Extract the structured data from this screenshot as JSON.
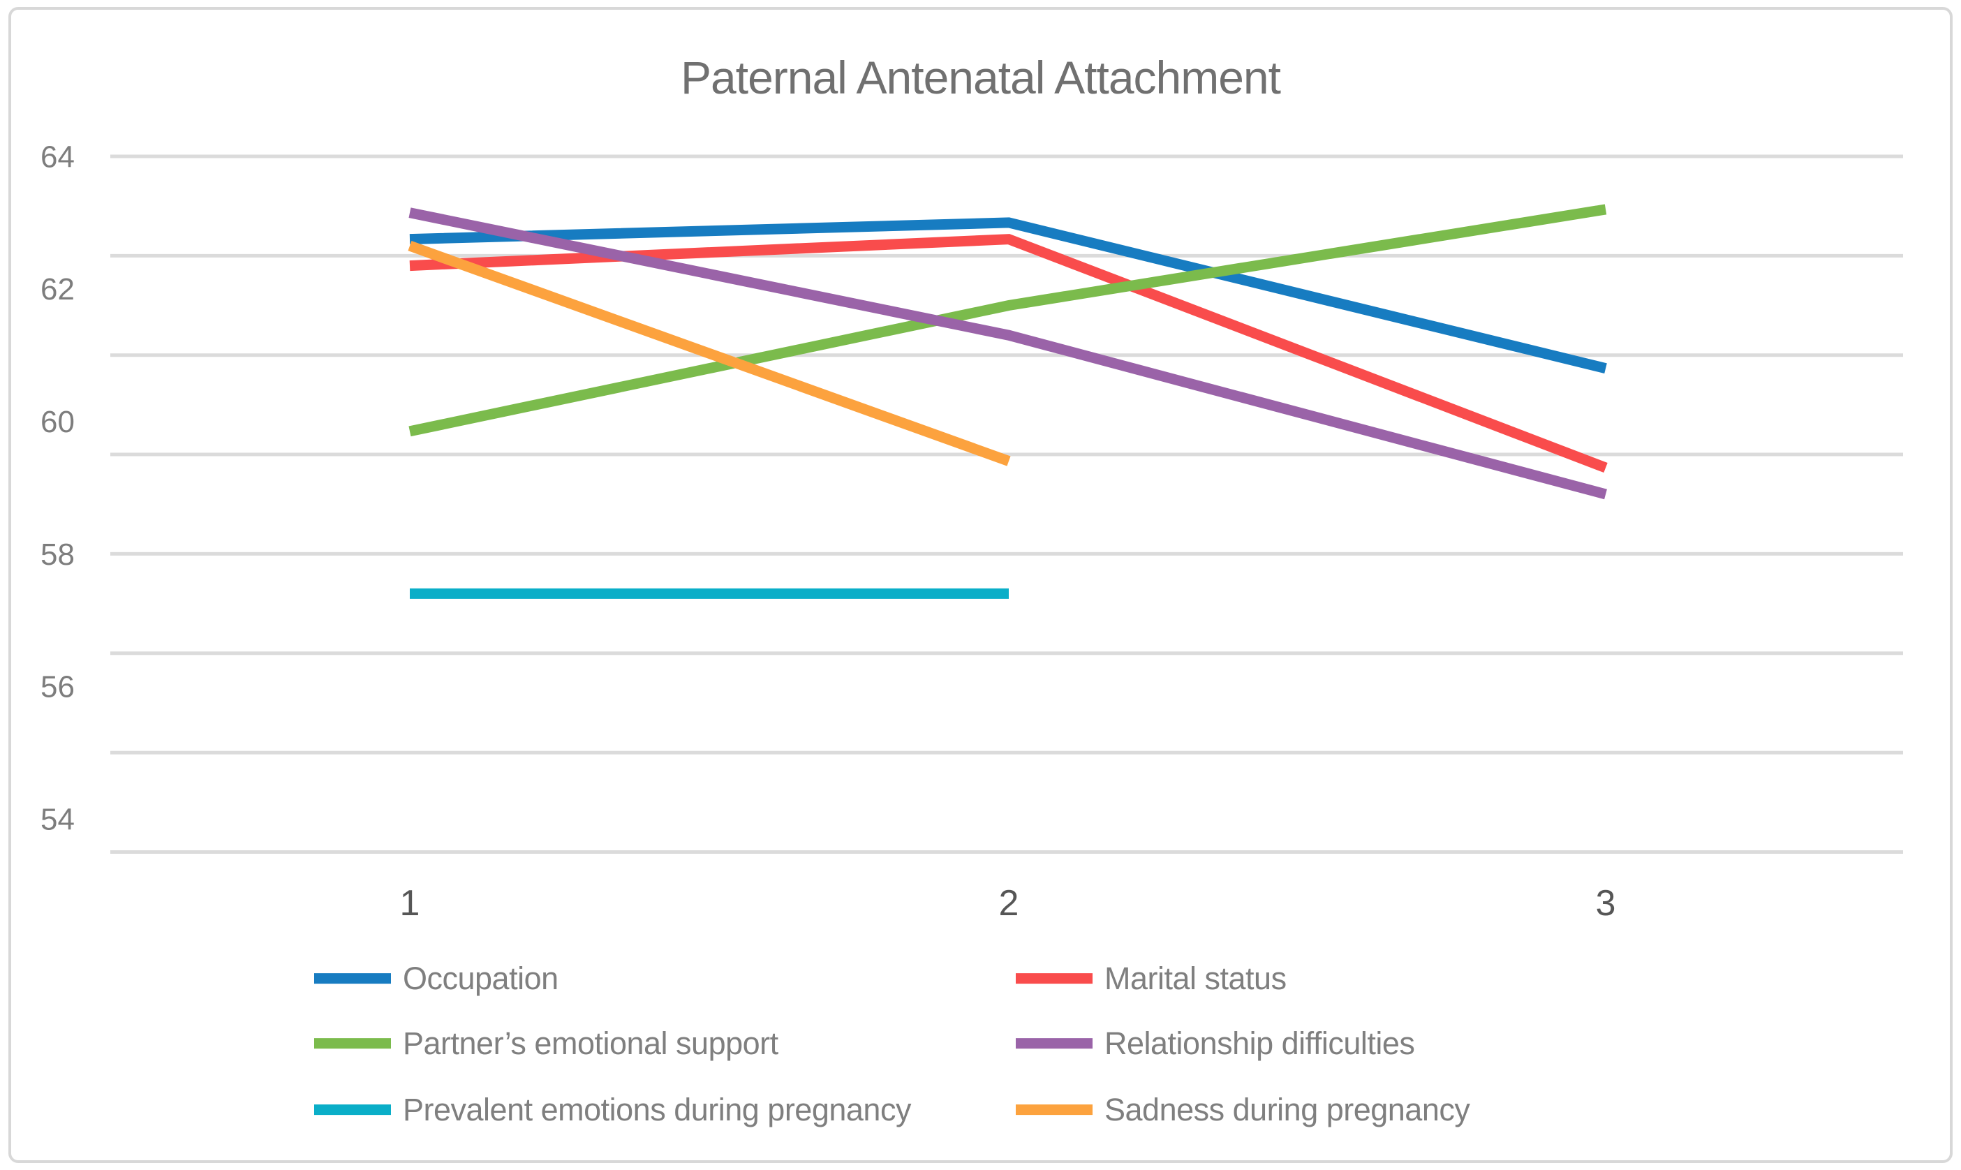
{
  "chart_data": {
    "type": "line",
    "title": "Paternal Antenatal Attachment",
    "xlabel": "",
    "ylabel": "",
    "categories": [
      1,
      2,
      3
    ],
    "x_tick_labels": [
      "1",
      "2",
      "3"
    ],
    "y_tick_labels": [
      "64",
      "62",
      "60",
      "58",
      "56",
      "54"
    ],
    "y_tick_values": [
      64,
      62,
      60,
      58,
      56,
      54
    ],
    "gridline_values": [
      64,
      62.5,
      61,
      59.5,
      58,
      56.5,
      55,
      53.5
    ],
    "ylim": [
      53.5,
      64.8
    ],
    "grid": true,
    "legend_position": "bottom",
    "series": [
      {
        "name": "Occupation",
        "color": "#177cc1",
        "values": [
          62.75,
          63.0,
          60.8
        ]
      },
      {
        "name": "Marital status",
        "color": "#f94c4c",
        "values": [
          62.35,
          62.75,
          59.3
        ]
      },
      {
        "name": "Partner’s emotional support",
        "color": "#7bbb4c",
        "values": [
          59.85,
          61.75,
          63.2
        ]
      },
      {
        "name": "Relationship difficulties",
        "color": "#9a63a8",
        "values": [
          63.15,
          61.3,
          58.9
        ]
      },
      {
        "name": "Prevalent emotions during pregnancy",
        "color": "#0aaec8",
        "values": [
          57.4,
          57.4,
          null
        ]
      },
      {
        "name": "Sadness during pregnancy",
        "color": "#fca23e",
        "values": [
          62.65,
          59.4,
          null
        ]
      }
    ],
    "colors": {
      "gridline": "#dbdbdb",
      "title_text": "#707070",
      "y_tick_text": "#7d7d7d",
      "x_tick_text": "#565656",
      "legend_text": "#7f7f7f",
      "figure_border": "#d8d8d8",
      "background": "#ffffff"
    }
  }
}
